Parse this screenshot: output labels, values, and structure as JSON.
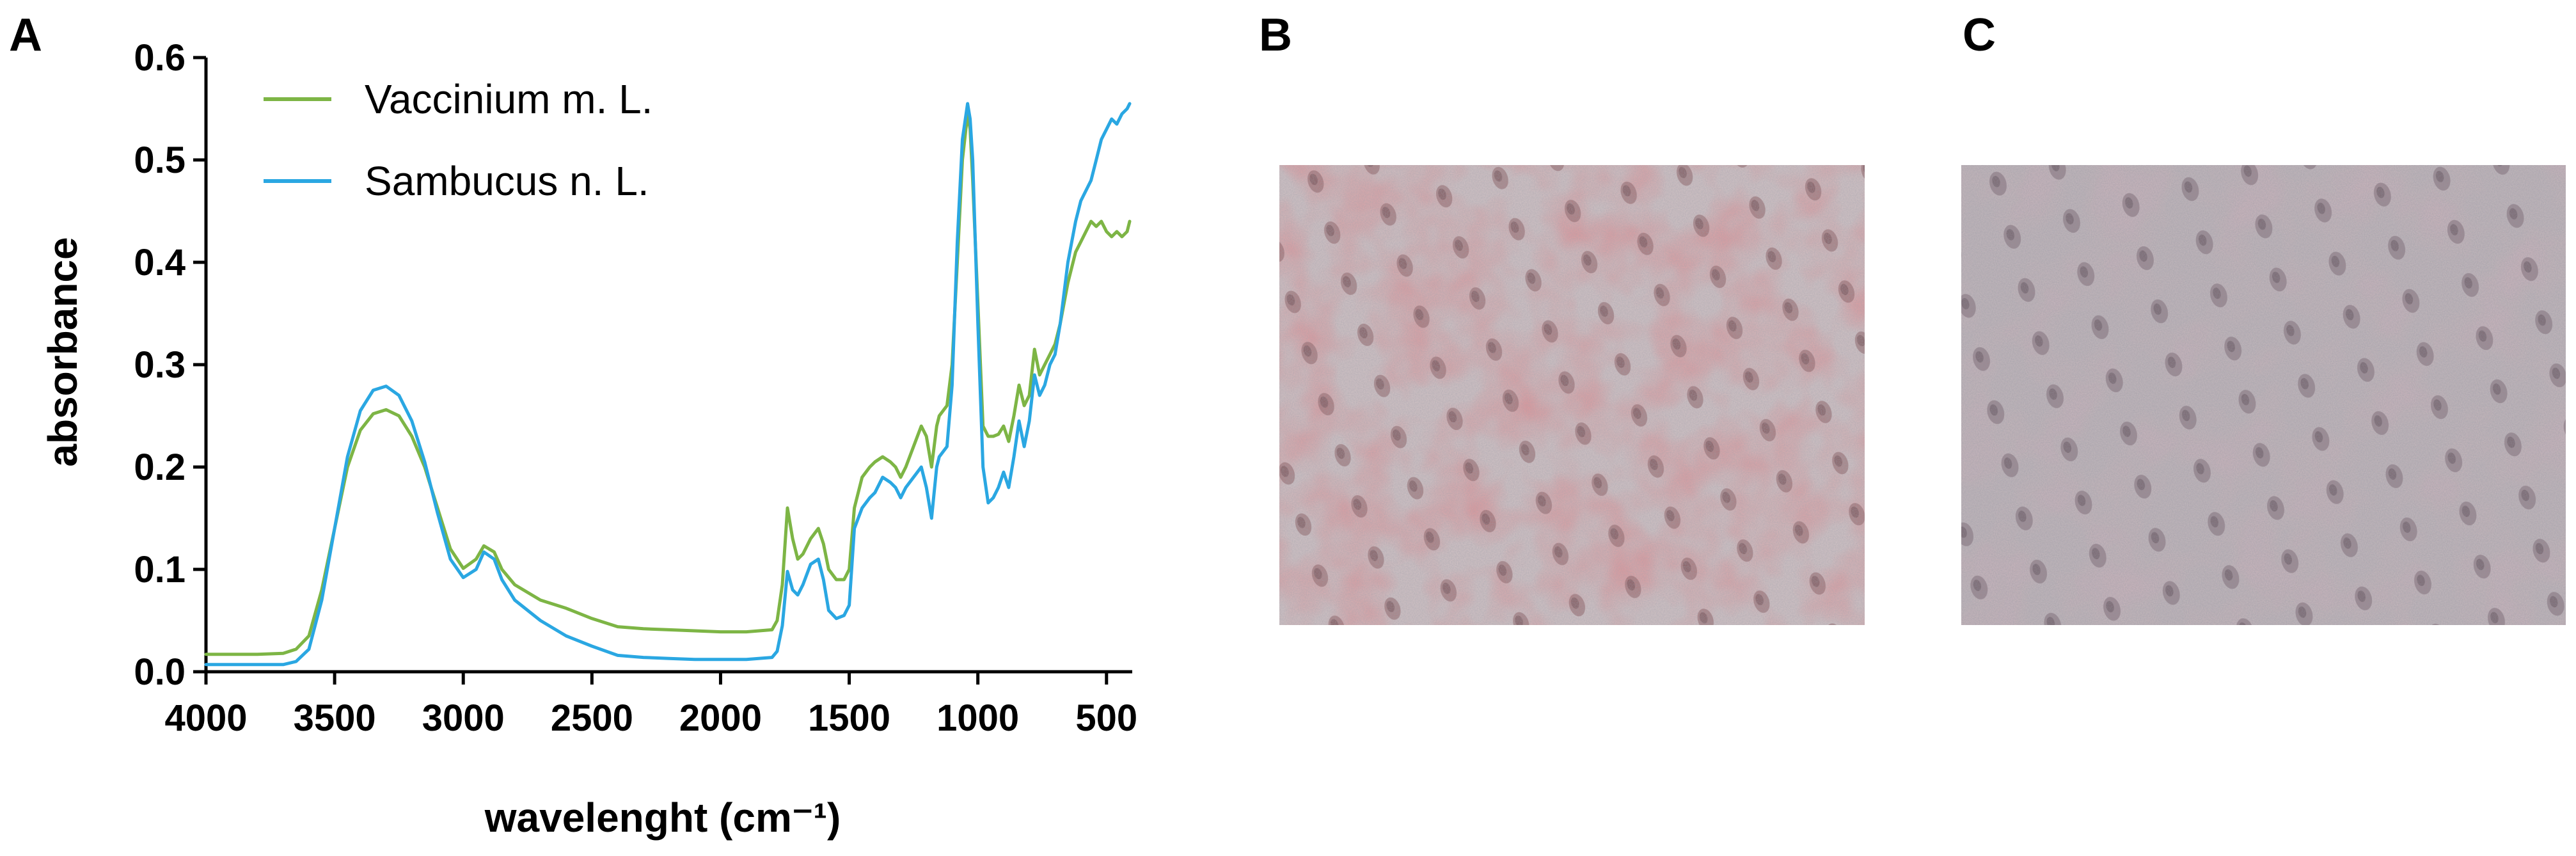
{
  "panels": {
    "a_label": "A",
    "b_label": "B",
    "c_label": "C"
  },
  "chart_data": {
    "type": "line",
    "title": "",
    "xlabel": "wavelenght (cm⁻¹)",
    "ylabel": "absorbance",
    "xlim": [
      4000,
      400
    ],
    "x_reversed": true,
    "ylim": [
      0.0,
      0.6
    ],
    "xticks": [
      4000,
      3500,
      3000,
      2500,
      2000,
      1500,
      1000,
      500
    ],
    "xtick_labels": [
      "4000",
      "3500",
      "3000",
      "2500",
      "2000",
      "1500",
      "1000",
      "500"
    ],
    "yticks": [
      0.0,
      0.1,
      0.2,
      0.3,
      0.4,
      0.5,
      0.6
    ],
    "ytick_labels": [
      "0.0",
      "0.1",
      "0.2",
      "0.3",
      "0.4",
      "0.5",
      "0.6"
    ],
    "grid": false,
    "legend_position": "top-left",
    "series": [
      {
        "name": "Vaccinium m. L.",
        "color": "#7db545",
        "x": [
          4000,
          3800,
          3700,
          3650,
          3600,
          3550,
          3500,
          3450,
          3400,
          3350,
          3300,
          3250,
          3200,
          3150,
          3100,
          3050,
          3000,
          2950,
          2920,
          2880,
          2850,
          2800,
          2700,
          2600,
          2500,
          2400,
          2300,
          2200,
          2100,
          2000,
          1900,
          1800,
          1780,
          1760,
          1740,
          1720,
          1700,
          1680,
          1650,
          1620,
          1600,
          1580,
          1550,
          1520,
          1500,
          1480,
          1450,
          1420,
          1400,
          1370,
          1340,
          1320,
          1300,
          1280,
          1250,
          1220,
          1200,
          1180,
          1160,
          1150,
          1120,
          1100,
          1080,
          1060,
          1040,
          1030,
          1020,
          1000,
          980,
          960,
          940,
          920,
          900,
          880,
          860,
          840,
          820,
          800,
          780,
          760,
          740,
          720,
          700,
          680,
          650,
          620,
          600,
          580,
          560,
          540,
          520,
          500,
          480,
          460,
          440,
          420,
          410
        ],
        "values": [
          0.017,
          0.017,
          0.018,
          0.022,
          0.035,
          0.08,
          0.14,
          0.2,
          0.236,
          0.252,
          0.256,
          0.25,
          0.23,
          0.2,
          0.16,
          0.12,
          0.101,
          0.11,
          0.123,
          0.117,
          0.1,
          0.085,
          0.07,
          0.062,
          0.052,
          0.044,
          0.042,
          0.041,
          0.04,
          0.039,
          0.039,
          0.041,
          0.05,
          0.085,
          0.16,
          0.13,
          0.11,
          0.115,
          0.13,
          0.14,
          0.125,
          0.1,
          0.09,
          0.09,
          0.1,
          0.16,
          0.19,
          0.2,
          0.205,
          0.21,
          0.205,
          0.2,
          0.19,
          0.2,
          0.22,
          0.24,
          0.23,
          0.2,
          0.24,
          0.25,
          0.26,
          0.3,
          0.4,
          0.5,
          0.545,
          0.53,
          0.48,
          0.36,
          0.24,
          0.23,
          0.23,
          0.232,
          0.24,
          0.225,
          0.25,
          0.28,
          0.26,
          0.27,
          0.315,
          0.29,
          0.3,
          0.31,
          0.32,
          0.34,
          0.38,
          0.41,
          0.42,
          0.43,
          0.44,
          0.435,
          0.44,
          0.43,
          0.425,
          0.43,
          0.425,
          0.43,
          0.44
        ]
      },
      {
        "name": "Sambucus n. L.",
        "color": "#2aa7e2",
        "x": [
          4000,
          3800,
          3700,
          3650,
          3600,
          3550,
          3500,
          3450,
          3400,
          3350,
          3300,
          3250,
          3200,
          3150,
          3100,
          3050,
          3000,
          2950,
          2920,
          2880,
          2850,
          2800,
          2700,
          2600,
          2500,
          2400,
          2300,
          2200,
          2100,
          2000,
          1900,
          1800,
          1780,
          1760,
          1740,
          1720,
          1700,
          1680,
          1650,
          1620,
          1600,
          1580,
          1550,
          1520,
          1500,
          1480,
          1450,
          1420,
          1400,
          1370,
          1340,
          1320,
          1300,
          1280,
          1250,
          1220,
          1200,
          1180,
          1160,
          1150,
          1120,
          1100,
          1080,
          1060,
          1040,
          1030,
          1020,
          1000,
          980,
          960,
          940,
          920,
          900,
          880,
          860,
          840,
          820,
          800,
          780,
          760,
          740,
          720,
          700,
          680,
          650,
          620,
          600,
          580,
          560,
          540,
          520,
          500,
          480,
          460,
          440,
          420,
          410
        ],
        "values": [
          0.007,
          0.007,
          0.007,
          0.01,
          0.022,
          0.07,
          0.14,
          0.21,
          0.255,
          0.275,
          0.279,
          0.27,
          0.245,
          0.205,
          0.155,
          0.11,
          0.092,
          0.1,
          0.117,
          0.11,
          0.09,
          0.07,
          0.05,
          0.035,
          0.025,
          0.016,
          0.014,
          0.013,
          0.012,
          0.012,
          0.012,
          0.014,
          0.02,
          0.045,
          0.098,
          0.08,
          0.075,
          0.085,
          0.105,
          0.11,
          0.09,
          0.06,
          0.052,
          0.055,
          0.065,
          0.14,
          0.16,
          0.17,
          0.175,
          0.19,
          0.185,
          0.18,
          0.17,
          0.18,
          0.19,
          0.2,
          0.18,
          0.15,
          0.2,
          0.21,
          0.22,
          0.28,
          0.42,
          0.52,
          0.555,
          0.54,
          0.5,
          0.34,
          0.2,
          0.165,
          0.17,
          0.18,
          0.195,
          0.18,
          0.21,
          0.245,
          0.22,
          0.245,
          0.29,
          0.27,
          0.28,
          0.3,
          0.31,
          0.34,
          0.4,
          0.44,
          0.46,
          0.47,
          0.48,
          0.5,
          0.52,
          0.53,
          0.54,
          0.535,
          0.545,
          0.55,
          0.555
        ]
      }
    ]
  }
}
